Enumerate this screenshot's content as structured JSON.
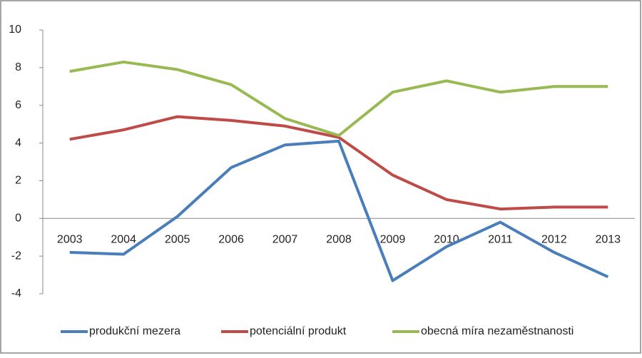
{
  "chart_data": {
    "type": "line",
    "categories": [
      "2003",
      "2004",
      "2005",
      "2006",
      "2007",
      "2008",
      "2009",
      "2010",
      "2011",
      "2012",
      "2013"
    ],
    "series": [
      {
        "name": "produkční mezera",
        "color": "#4a7ebb",
        "values": [
          -1.8,
          -1.9,
          0.1,
          2.7,
          3.9,
          4.1,
          -3.3,
          -1.5,
          -0.2,
          -1.8,
          -3.1
        ]
      },
      {
        "name": "potenciální produkt",
        "color": "#be4b48",
        "values": [
          4.2,
          4.7,
          5.4,
          5.2,
          4.9,
          4.3,
          2.3,
          1.0,
          0.5,
          0.6,
          0.6
        ]
      },
      {
        "name": "obecná míra nezaměstnanosti",
        "color": "#98b954",
        "values": [
          7.8,
          8.3,
          7.9,
          7.1,
          5.3,
          4.4,
          6.7,
          7.3,
          6.7,
          7.0,
          7.0
        ]
      }
    ],
    "ylim": [
      -4,
      10
    ],
    "yticks": [
      -4,
      -2,
      0,
      2,
      4,
      6,
      8,
      10
    ],
    "grid": false,
    "legend": "bottom"
  }
}
